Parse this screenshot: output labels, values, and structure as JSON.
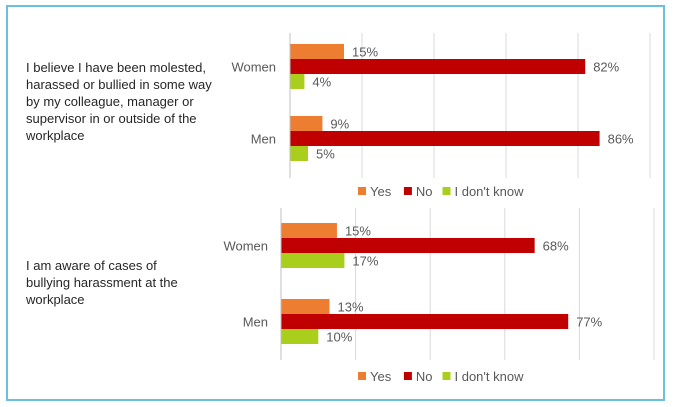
{
  "chart_data": [
    {
      "type": "bar",
      "orientation": "horizontal",
      "description": "I believe I have been molested, harassed or bullied in some way by my colleague, manager or supervisor in or outside of the workplace",
      "categories": [
        "Women",
        "Men"
      ],
      "series": [
        {
          "name": "Yes",
          "color": "#ed7d31",
          "values": [
            15,
            9
          ],
          "labels": [
            "15%",
            "9%"
          ]
        },
        {
          "name": "No",
          "color": "#c00000",
          "values": [
            82,
            86
          ],
          "labels": [
            "82%",
            "86%"
          ]
        },
        {
          "name": "I don't know",
          "color": "#a9cf1c",
          "values": [
            4,
            5
          ],
          "labels": [
            "4%",
            "5%"
          ]
        }
      ],
      "xlim": [
        0,
        100
      ],
      "grid": true,
      "legend": "bottom"
    },
    {
      "type": "bar",
      "orientation": "horizontal",
      "description": "I am aware of cases of bullying harassment at the workplace",
      "categories": [
        "Women",
        "Men"
      ],
      "series": [
        {
          "name": "Yes",
          "color": "#ed7d31",
          "values": [
            15,
            13
          ],
          "labels": [
            "15%",
            "13%"
          ]
        },
        {
          "name": "No",
          "color": "#c00000",
          "values": [
            68,
            77
          ],
          "labels": [
            "68%",
            "77%"
          ]
        },
        {
          "name": "I don't know",
          "color": "#a9cf1c",
          "values": [
            17,
            10
          ],
          "labels": [
            "17%",
            "10%"
          ]
        }
      ],
      "xlim": [
        0,
        100
      ],
      "grid": true,
      "legend": "bottom"
    }
  ]
}
